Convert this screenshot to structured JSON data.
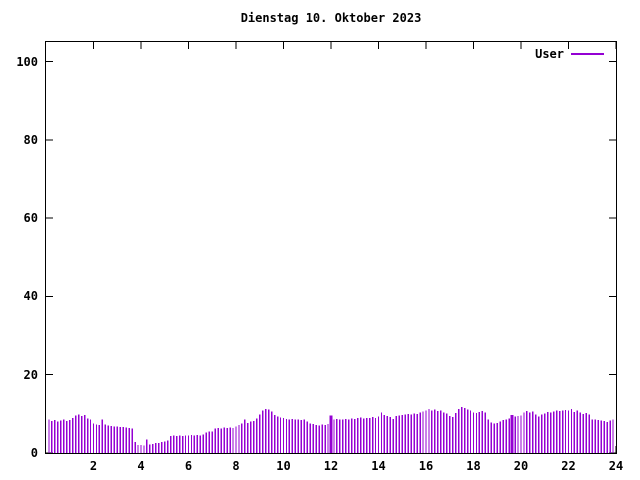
{
  "title": "Dienstag 10. Oktober 2023",
  "legend": {
    "label": "User"
  },
  "colors": {
    "bars": "#9400d3",
    "axis": "#000000",
    "background": "#ffffff"
  },
  "chart_data": {
    "type": "bar",
    "title": "Dienstag 10. Oktober 2023",
    "xlabel": "",
    "ylabel": "",
    "xlim": [
      0,
      24
    ],
    "ylim": [
      0,
      105
    ],
    "x_tick_values": [
      2,
      4,
      6,
      8,
      10,
      12,
      14,
      16,
      18,
      20,
      22,
      24
    ],
    "y_tick_values": [
      0,
      20,
      40,
      60,
      80,
      100
    ],
    "grid": false,
    "legend_position": "top-right-inside",
    "x_unit": "hours",
    "x_start": 0.125,
    "x_step": 0.125,
    "wide_bar_indices": [
      95,
      156
    ],
    "series": [
      {
        "name": "User",
        "color": "#9400d3",
        "style": "impulses",
        "values": [
          8.6,
          8.2,
          8.4,
          8.1,
          8.3,
          8.5,
          8.2,
          8.4,
          9.0,
          9.6,
          9.9,
          9.4,
          9.7,
          8.8,
          8.5,
          7.6,
          7.3,
          7.2,
          8.5,
          7.3,
          7.0,
          6.9,
          6.8,
          6.8,
          6.7,
          6.6,
          6.5,
          6.4,
          6.3,
          2.8,
          2.0,
          2.0,
          1.9,
          3.4,
          2.2,
          2.3,
          2.5,
          2.6,
          2.8,
          3.0,
          3.2,
          4.4,
          4.5,
          4.4,
          4.5,
          4.4,
          4.5,
          4.5,
          4.6,
          4.5,
          4.6,
          4.5,
          4.7,
          5.3,
          5.5,
          5.5,
          6.3,
          6.4,
          6.3,
          6.5,
          6.4,
          6.5,
          6.4,
          6.8,
          7.2,
          7.6,
          8.5,
          7.7,
          8.0,
          8.2,
          8.8,
          9.8,
          10.8,
          11.3,
          11.1,
          10.6,
          9.7,
          9.3,
          9.1,
          8.9,
          8.7,
          8.6,
          8.7,
          8.5,
          8.6,
          8.4,
          8.5,
          8.0,
          7.6,
          7.4,
          7.2,
          7.0,
          7.3,
          7.2,
          7.4,
          9.6,
          8.6,
          8.7,
          8.5,
          8.6,
          8.7,
          8.6,
          8.8,
          8.7,
          8.9,
          9.1,
          8.8,
          8.9,
          9.0,
          9.2,
          9.0,
          9.3,
          10.3,
          9.7,
          9.5,
          9.2,
          8.7,
          9.4,
          9.6,
          9.7,
          9.9,
          10.0,
          9.8,
          10.1,
          10.0,
          10.3,
          10.6,
          10.9,
          11.3,
          10.9,
          11.1,
          10.7,
          10.9,
          10.4,
          10.1,
          9.4,
          9.2,
          10.2,
          11.3,
          11.8,
          11.5,
          11.1,
          10.8,
          10.4,
          10.2,
          10.5,
          10.7,
          10.3,
          8.5,
          7.8,
          7.5,
          7.7,
          8.0,
          8.4,
          8.6,
          8.8,
          9.7,
          9.3,
          9.5,
          9.6,
          10.4,
          10.7,
          10.3,
          10.6,
          9.8,
          9.3,
          9.9,
          10.1,
          10.5,
          10.3,
          10.6,
          10.9,
          10.7,
          10.8,
          11.0,
          10.9,
          11.2,
          10.5,
          10.8,
          10.3,
          10.0,
          10.2,
          9.8,
          8.6,
          8.5,
          8.4,
          8.3,
          8.2,
          7.9,
          8.3,
          8.6
        ]
      }
    ]
  }
}
